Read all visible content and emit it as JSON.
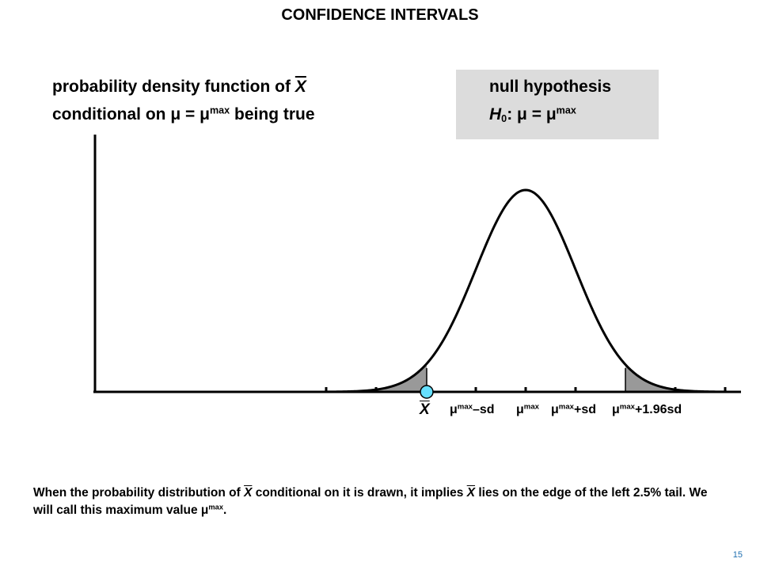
{
  "title": "CONFIDENCE INTERVALS",
  "pdf_label": {
    "line1_text": "probability density function of ",
    "line1_var": "X",
    "line2_a": "conditional on ",
    "line2_mu": "μ",
    "line2_eq": " = ",
    "line2_mu2": "μ",
    "line2_sup": "max",
    "line2_b": " being true"
  },
  "hypothesis": {
    "title": "null hypothesis",
    "H": "H",
    "H_sub": "0",
    "colon": ": ",
    "mu": "μ",
    "eq": " = ",
    "mu2": "μ",
    "sup": "max"
  },
  "axis_labels": {
    "xbar": "X",
    "t1_mu": "μ",
    "t1_sup": "max",
    "t1_suffix": "–sd",
    "t2_mu": "μ",
    "t2_sup": "max",
    "t3_mu": "μ",
    "t3_sup": "max",
    "t3_suffix": "+sd",
    "t4_mu": "μ",
    "t4_sup": "max",
    "t4_suffix": "+1.96sd"
  },
  "caption": {
    "p1": "When the probability distribution of ",
    "x1": "X",
    "p2": " conditional on it is drawn, it implies ",
    "x2": "X",
    "p3": " lies on the edge of the left 2.5% tail.  We will call this maximum value ",
    "mu": "μ",
    "sup": "max",
    "p4": "."
  },
  "page_number": "15",
  "colors": {
    "tail_fill": "#999999",
    "point_fill": "#66e0ff",
    "hyp_box": "#dcdcdc"
  }
}
